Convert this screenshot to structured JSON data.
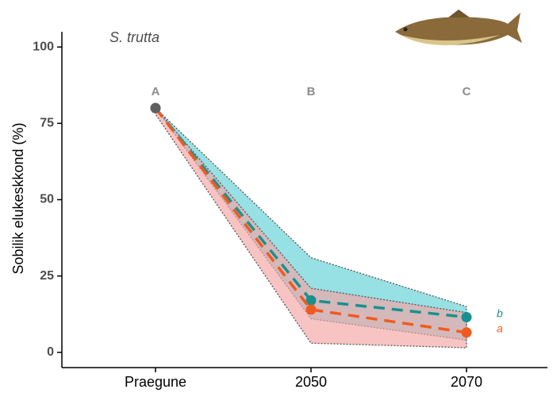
{
  "chart_data": {
    "type": "ribbon-line",
    "species": "S. trutta",
    "y_label": "Sobilik elukeskkond (%)",
    "categories": [
      "Praegune",
      "2050",
      "2070"
    ],
    "group_labels": [
      "A",
      "B",
      "C"
    ],
    "start_point_color": "#5f5f5f",
    "series": [
      {
        "name": "b",
        "color": "#17918f",
        "band_color": "#5fd0d6",
        "values": [
          80,
          17,
          11.5
        ],
        "lower": [
          80,
          11,
          4
        ],
        "upper": [
          80,
          31,
          15
        ]
      },
      {
        "name": "a",
        "color": "#f05a1e",
        "band_color": "#f5a3a3",
        "values": [
          80,
          14,
          6.5
        ],
        "lower": [
          78,
          3,
          1.5
        ],
        "upper": [
          80,
          21,
          13
        ]
      }
    ],
    "ylim": [
      -5,
      105
    ],
    "yticks": [
      0,
      25,
      50,
      75,
      100
    ]
  }
}
